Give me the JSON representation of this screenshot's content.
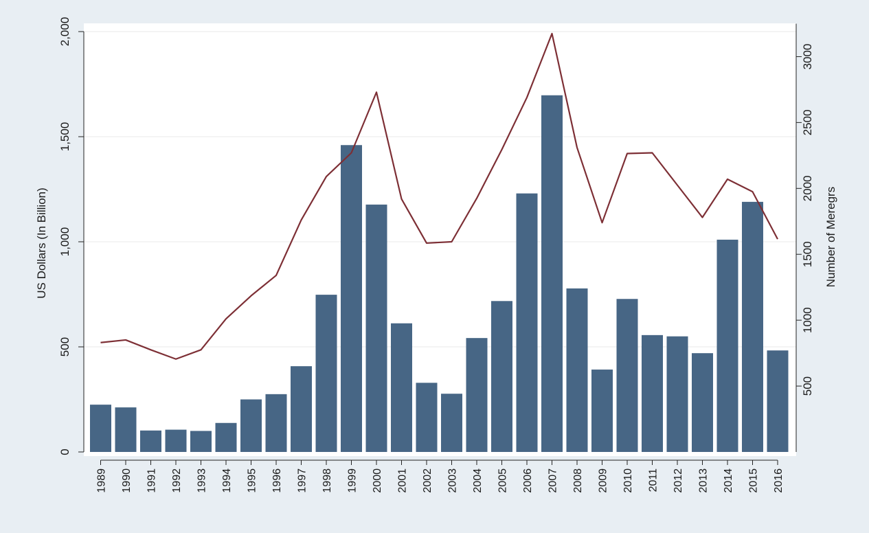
{
  "chart_data": {
    "type": "bar",
    "categories": [
      "1989",
      "1990",
      "1991",
      "1992",
      "1993",
      "1994",
      "1995",
      "1996",
      "1997",
      "1998",
      "1999",
      "2000",
      "2001",
      "2002",
      "2003",
      "2004",
      "2005",
      "2006",
      "2007",
      "2008",
      "2009",
      "2010",
      "2011",
      "2012",
      "2013",
      "2014",
      "2015",
      "2016"
    ],
    "series": [
      {
        "type": "bar",
        "axis": "left",
        "color": "#476685",
        "values": [
          225,
          212,
          102,
          106,
          100,
          138,
          250,
          275,
          408,
          748,
          1460,
          1177,
          612,
          329,
          277,
          542,
          718,
          1230,
          1697,
          778,
          392,
          728,
          556,
          550,
          470,
          1010,
          1190,
          483
        ]
      },
      {
        "type": "line",
        "axis": "right",
        "color": "#7d2f35",
        "values": [
          830,
          850,
          775,
          705,
          775,
          1010,
          1185,
          1340,
          1760,
          2090,
          2270,
          2730,
          1920,
          1585,
          1595,
          1925,
          2295,
          2690,
          3175,
          2310,
          1740,
          2265,
          2270,
          2025,
          1780,
          2070,
          1975,
          1615
        ]
      }
    ],
    "ylabel": "US Dollars (In Billion)",
    "y2label": "Number of Meregrs",
    "yticks": [
      {
        "value": 0,
        "label": "0"
      },
      {
        "value": 500,
        "label": "500"
      },
      {
        "value": 1000,
        "label": "1,000"
      },
      {
        "value": 1500,
        "label": "1,500"
      },
      {
        "value": 2000,
        "label": "2,000"
      }
    ],
    "y2ticks": [
      {
        "value": 500,
        "label": "500"
      },
      {
        "value": 1000,
        "label": "1000"
      },
      {
        "value": 1500,
        "label": "1500"
      },
      {
        "value": 2000,
        "label": "2000"
      },
      {
        "value": 2500,
        "label": "2500"
      },
      {
        "value": 3000,
        "label": "3000"
      }
    ],
    "ylim": [
      0,
      2000
    ],
    "y2lim": [
      0,
      3250
    ],
    "grid": true
  }
}
